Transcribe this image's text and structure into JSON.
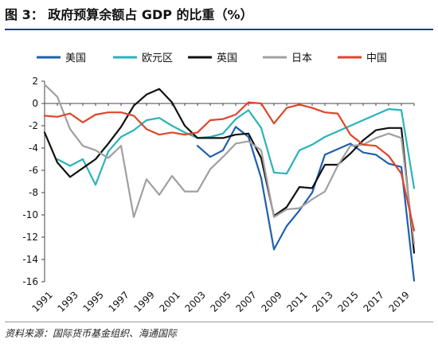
{
  "figure": {
    "title": "图 3：  政府预算余额占 GDP 的比重（%）",
    "source": "资料来源：国际货币基金组织、海通国际"
  },
  "chart_data": {
    "type": "line",
    "x": [
      1991,
      1992,
      1993,
      1994,
      1995,
      1996,
      1997,
      1998,
      1999,
      2000,
      2001,
      2002,
      2003,
      2004,
      2005,
      2006,
      2007,
      2008,
      2009,
      2010,
      2011,
      2012,
      2013,
      2014,
      2015,
      2016,
      2017,
      2018,
      2019,
      2020
    ],
    "x_tick_labels": [
      "1991",
      "1993",
      "1995",
      "1997",
      "1999",
      "2001",
      "2003",
      "2005",
      "2007",
      "2009",
      "2011",
      "2013",
      "2015",
      "2017",
      "2019"
    ],
    "ylim": [
      -16,
      2
    ],
    "y_ticks": [
      2,
      0,
      -2,
      -4,
      -6,
      -8,
      -10,
      -12,
      -14,
      -16
    ],
    "legend_position": "top",
    "grid": false,
    "series": [
      {
        "name": "美国",
        "color": "#1f5fb0",
        "values": [
          null,
          null,
          null,
          null,
          null,
          null,
          null,
          null,
          null,
          null,
          null,
          null,
          -3.8,
          -4.8,
          -4.2,
          -2.1,
          -3.0,
          -6.7,
          -13.1,
          -11.0,
          -9.6,
          -8.0,
          -4.6,
          -4.1,
          -3.6,
          -4.4,
          -4.6,
          -5.4,
          -5.7,
          -15.9
        ]
      },
      {
        "name": "欧元区",
        "color": "#2bb3bb",
        "values": [
          null,
          -5.0,
          -5.6,
          -5.0,
          -7.3,
          -4.3,
          -3.0,
          -2.4,
          -1.5,
          -1.3,
          -2.0,
          -2.6,
          -3.1,
          -3.0,
          -2.7,
          -1.4,
          -0.6,
          -2.2,
          -6.2,
          -6.3,
          -4.2,
          -3.7,
          -3.0,
          -2.5,
          -2.0,
          -1.5,
          -1.0,
          -0.5,
          -0.6,
          -7.6
        ]
      },
      {
        "name": "英国",
        "color": "#111111",
        "values": [
          -2.6,
          -5.3,
          -6.6,
          -5.8,
          -5.0,
          -3.6,
          -2.1,
          -0.2,
          0.8,
          1.3,
          0.1,
          -2.0,
          -3.1,
          -3.1,
          -3.1,
          -2.8,
          -2.7,
          -4.9,
          -10.1,
          -9.3,
          -7.5,
          -7.6,
          -5.5,
          -5.5,
          -4.5,
          -3.3,
          -2.4,
          -2.2,
          -2.2,
          -13.4
        ]
      },
      {
        "name": "日本",
        "color": "#a0a0a0",
        "values": [
          1.7,
          0.6,
          -2.3,
          -3.8,
          -4.2,
          -4.9,
          -3.8,
          -10.2,
          -6.8,
          -8.2,
          -6.5,
          -7.9,
          -7.9,
          -5.9,
          -4.8,
          -3.6,
          -3.4,
          -4.2,
          -10.2,
          -9.5,
          -9.4,
          -8.6,
          -7.9,
          -5.6,
          -3.8,
          -3.7,
          -3.1,
          -2.7,
          -3.1,
          -12.6
        ]
      },
      {
        "name": "中国",
        "color": "#e0452a",
        "values": [
          -1.1,
          -1.2,
          -0.9,
          -1.7,
          -1.0,
          -0.8,
          -0.8,
          -1.1,
          -2.3,
          -2.8,
          -2.6,
          -2.8,
          -2.6,
          -1.5,
          -1.4,
          -1.0,
          0.1,
          0.0,
          -1.8,
          -0.4,
          -0.1,
          -0.4,
          -0.8,
          -0.9,
          -2.8,
          -3.7,
          -3.8,
          -4.7,
          -6.3,
          -11.4
        ]
      }
    ]
  }
}
